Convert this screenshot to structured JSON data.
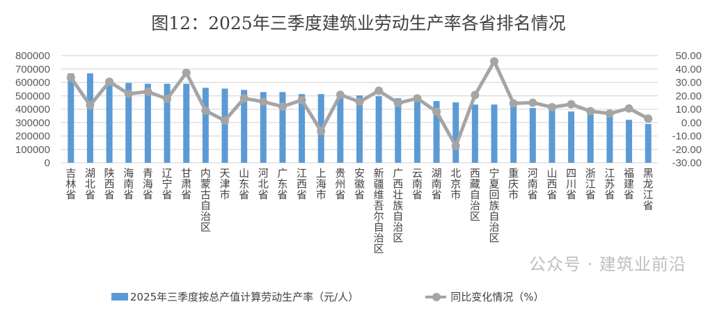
{
  "chart_data": {
    "type": "bar+line",
    "title": "图12：2025年三季度建筑业劳动生产率各省排名情况",
    "categories": [
      "吉林省",
      "湖北省",
      "陕西省",
      "海南省",
      "青海省",
      "辽宁省",
      "甘肃省",
      "内蒙古自治区",
      "天津市",
      "山东省",
      "河北省",
      "广东省",
      "江西省",
      "上海市",
      "贵州省",
      "安徽省",
      "新疆维吾尔自治区",
      "广西壮族自治区",
      "云南省",
      "湖南省",
      "北京市",
      "西藏自治区",
      "宁夏回族自治区",
      "重庆市",
      "河南省",
      "山西省",
      "四川省",
      "浙江省",
      "江苏省",
      "福建省",
      "黑龙江省"
    ],
    "series": [
      {
        "name": "2025年三季度按总产值计算劳动生产率（元/人）",
        "type": "bar",
        "axis": "left",
        "color": "#5b9bd5",
        "values": [
          668000,
          668000,
          615000,
          596000,
          590000,
          590000,
          590000,
          560000,
          554000,
          544000,
          528000,
          528000,
          513000,
          513000,
          504000,
          503000,
          497000,
          482000,
          470000,
          461000,
          451000,
          435000,
          435000,
          425000,
          409000,
          400000,
          383000,
          366000,
          350000,
          321000,
          290000
        ]
      },
      {
        "name": "同比变化情况（%）",
        "type": "line",
        "axis": "right",
        "color": "#a5a5a5",
        "values": [
          33.6,
          12.9,
          30.5,
          21.5,
          23.1,
          17.7,
          37.2,
          8.9,
          1.5,
          18.1,
          15.6,
          12.0,
          16.8,
          -6.3,
          20.8,
          15.5,
          23.8,
          14.6,
          18.1,
          8.2,
          -17.4,
          20.6,
          45.7,
          14.4,
          14.9,
          11.5,
          13.7,
          8.5,
          6.8,
          10.6,
          3.0
        ]
      }
    ],
    "left_axis": {
      "ylim": [
        0,
        800000
      ],
      "ticks": [
        "0",
        "100000",
        "200000",
        "300000",
        "400000",
        "500000",
        "600000",
        "700000",
        "800000"
      ]
    },
    "right_axis": {
      "ylim": [
        -30,
        50
      ],
      "ticks": [
        "-30.00",
        "-20.00",
        "-10.00",
        "0.00",
        "10.00",
        "20.00",
        "30.00",
        "40.00",
        "50.00"
      ]
    },
    "grid": true,
    "legend": "bottom"
  },
  "watermark": "公众号 · 建筑业前沿"
}
